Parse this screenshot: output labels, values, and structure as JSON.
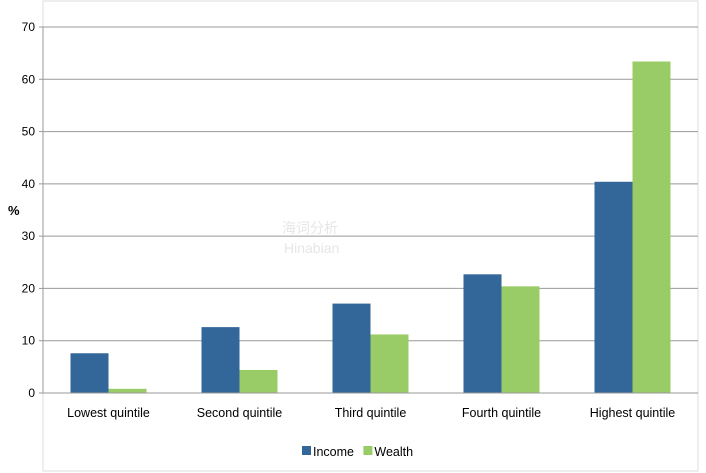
{
  "chart_data": {
    "type": "bar",
    "title": "",
    "xlabel": "",
    "ylabel": "%",
    "ylim": [
      0,
      70
    ],
    "yticks": [
      0,
      10,
      20,
      30,
      40,
      50,
      60,
      70
    ],
    "grid": true,
    "legend": "bottom",
    "categories": [
      "Lowest quintile",
      "Second quintile",
      "Third quintile",
      "Fourth quintile",
      "Highest quintile"
    ],
    "series": [
      {
        "name": "Income",
        "color": "#336699",
        "values": [
          7.6,
          12.6,
          17.1,
          22.7,
          40.4
        ]
      },
      {
        "name": "Wealth",
        "color": "#99cc66",
        "values": [
          0.8,
          4.4,
          11.2,
          20.4,
          63.4
        ]
      }
    ]
  }
}
